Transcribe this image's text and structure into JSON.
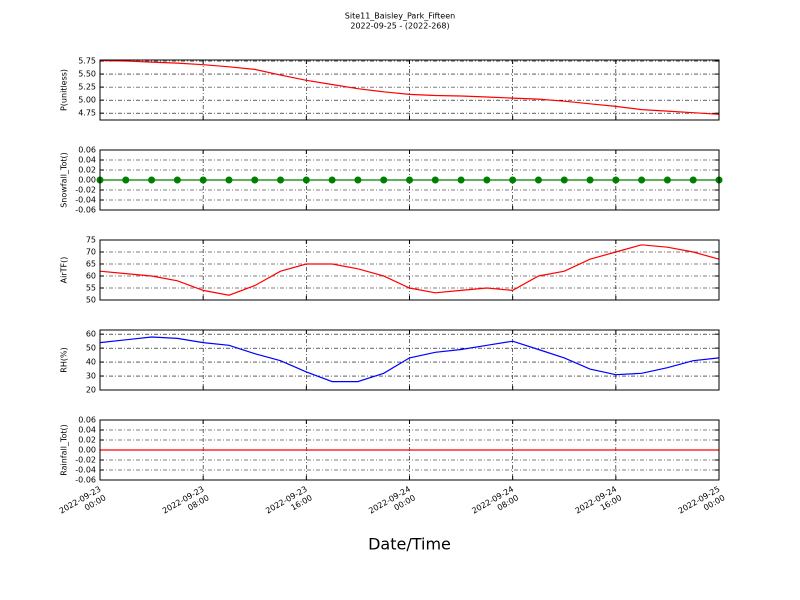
{
  "title": "Site11_Baisley_Park_Fifteen",
  "subtitle": "2022-09-25 - (2022-268)",
  "chart_data": [
    {
      "type": "line",
      "ylabel": "P(unitless)",
      "color": "#ff0000",
      "grid": true,
      "x": [
        "2022-09-23 00:00",
        "2022-09-23 02:00",
        "2022-09-23 04:00",
        "2022-09-23 06:00",
        "2022-09-23 08:00",
        "2022-09-23 10:00",
        "2022-09-23 12:00",
        "2022-09-23 14:00",
        "2022-09-23 16:00",
        "2022-09-23 18:00",
        "2022-09-23 20:00",
        "2022-09-23 22:00",
        "2022-09-24 00:00",
        "2022-09-24 02:00",
        "2022-09-24 04:00",
        "2022-09-24 06:00",
        "2022-09-24 08:00",
        "2022-09-24 10:00",
        "2022-09-24 12:00",
        "2022-09-24 14:00",
        "2022-09-24 16:00",
        "2022-09-24 18:00",
        "2022-09-24 20:00",
        "2022-09-24 22:00",
        "2022-09-25 00:00"
      ],
      "values": [
        5.76,
        5.75,
        5.73,
        5.71,
        5.68,
        5.64,
        5.59,
        5.48,
        5.38,
        5.3,
        5.22,
        5.16,
        5.11,
        5.09,
        5.08,
        5.06,
        5.04,
        5.02,
        4.98,
        4.93,
        4.88,
        4.82,
        4.79,
        4.76,
        4.73
      ],
      "xlim": [
        "2022-09-23 00:00",
        "2022-09-25 00:00"
      ],
      "xticks": [
        "2022-09-23 00:00",
        "2022-09-23 08:00",
        "2022-09-23 16:00",
        "2022-09-24 00:00",
        "2022-09-24 08:00",
        "2022-09-24 16:00",
        "2022-09-25 00:00"
      ],
      "ylim": [
        4.62,
        5.77
      ],
      "yticks": [
        4.75,
        {
          "value": 5,
          "label": "5.00"
        },
        5.25,
        {
          "value": 5.5,
          "label": "5.50"
        },
        5.75
      ]
    },
    {
      "type": "line",
      "ylabel": "Snowfall_Tot()",
      "color": "#008000",
      "marker": true,
      "grid": true,
      "x": [
        "2022-09-23 00:00",
        "2022-09-23 02:00",
        "2022-09-23 04:00",
        "2022-09-23 06:00",
        "2022-09-23 08:00",
        "2022-09-23 10:00",
        "2022-09-23 12:00",
        "2022-09-23 14:00",
        "2022-09-23 16:00",
        "2022-09-23 18:00",
        "2022-09-23 20:00",
        "2022-09-23 22:00",
        "2022-09-24 00:00",
        "2022-09-24 02:00",
        "2022-09-24 04:00",
        "2022-09-24 06:00",
        "2022-09-24 08:00",
        "2022-09-24 10:00",
        "2022-09-24 12:00",
        "2022-09-24 14:00",
        "2022-09-24 16:00",
        "2022-09-24 18:00",
        "2022-09-24 20:00",
        "2022-09-24 22:00",
        "2022-09-25 00:00"
      ],
      "values": [
        0,
        0,
        0,
        0,
        0,
        0,
        0,
        0,
        0,
        0,
        0,
        0,
        0,
        0,
        0,
        0,
        0,
        0,
        0,
        0,
        0,
        0,
        0,
        0,
        0
      ],
      "xlim": [
        "2022-09-23 00:00",
        "2022-09-25 00:00"
      ],
      "xticks": [
        "2022-09-23 00:00",
        "2022-09-23 08:00",
        "2022-09-23 16:00",
        "2022-09-24 00:00",
        "2022-09-24 08:00",
        "2022-09-24 16:00",
        "2022-09-25 00:00"
      ],
      "ylim": [
        -0.06,
        0.06
      ],
      "yticks": [
        -0.06,
        -0.04,
        -0.02,
        {
          "value": 0,
          "label": "0.00"
        },
        0.02,
        0.04,
        0.06
      ]
    },
    {
      "type": "line",
      "ylabel": "AirTF()",
      "color": "#ff0000",
      "grid": true,
      "x": [
        "2022-09-23 00:00",
        "2022-09-23 02:00",
        "2022-09-23 04:00",
        "2022-09-23 06:00",
        "2022-09-23 08:00",
        "2022-09-23 10:00",
        "2022-09-23 12:00",
        "2022-09-23 14:00",
        "2022-09-23 16:00",
        "2022-09-23 18:00",
        "2022-09-23 20:00",
        "2022-09-23 22:00",
        "2022-09-24 00:00",
        "2022-09-24 02:00",
        "2022-09-24 04:00",
        "2022-09-24 06:00",
        "2022-09-24 08:00",
        "2022-09-24 10:00",
        "2022-09-24 12:00",
        "2022-09-24 14:00",
        "2022-09-24 16:00",
        "2022-09-24 18:00",
        "2022-09-24 20:00",
        "2022-09-24 22:00",
        "2022-09-25 00:00"
      ],
      "values": [
        62,
        61,
        60,
        58,
        54,
        52,
        56,
        62,
        65,
        65,
        63,
        60,
        55,
        53,
        54,
        55,
        54,
        60,
        62,
        67,
        70,
        73,
        72,
        70,
        67
      ],
      "xlim": [
        "2022-09-23 00:00",
        "2022-09-25 00:00"
      ],
      "xticks": [
        "2022-09-23 00:00",
        "2022-09-23 08:00",
        "2022-09-23 16:00",
        "2022-09-24 00:00",
        "2022-09-24 08:00",
        "2022-09-24 16:00",
        "2022-09-25 00:00"
      ],
      "ylim": [
        50,
        75
      ],
      "yticks": [
        50,
        55,
        60,
        65,
        70,
        75
      ]
    },
    {
      "type": "line",
      "ylabel": "RH(%)",
      "color": "#0000ff",
      "grid": true,
      "x": [
        "2022-09-23 00:00",
        "2022-09-23 02:00",
        "2022-09-23 04:00",
        "2022-09-23 06:00",
        "2022-09-23 08:00",
        "2022-09-23 10:00",
        "2022-09-23 12:00",
        "2022-09-23 14:00",
        "2022-09-23 16:00",
        "2022-09-23 18:00",
        "2022-09-23 20:00",
        "2022-09-23 22:00",
        "2022-09-24 00:00",
        "2022-09-24 02:00",
        "2022-09-24 04:00",
        "2022-09-24 06:00",
        "2022-09-24 08:00",
        "2022-09-24 10:00",
        "2022-09-24 12:00",
        "2022-09-24 14:00",
        "2022-09-24 16:00",
        "2022-09-24 18:00",
        "2022-09-24 20:00",
        "2022-09-24 22:00",
        "2022-09-25 00:00"
      ],
      "values": [
        54,
        56,
        58,
        57,
        54,
        52,
        46,
        41,
        33,
        26,
        26,
        32,
        43,
        47,
        49,
        52,
        55,
        49,
        43,
        35,
        31,
        32,
        36,
        41,
        43
      ],
      "xlim": [
        "2022-09-23 00:00",
        "2022-09-25 00:00"
      ],
      "xticks": [
        "2022-09-23 00:00",
        "2022-09-23 08:00",
        "2022-09-23 16:00",
        "2022-09-24 00:00",
        "2022-09-24 08:00",
        "2022-09-24 16:00",
        "2022-09-25 00:00"
      ],
      "ylim": [
        20,
        63
      ],
      "yticks": [
        20,
        30,
        40,
        50,
        60
      ]
    },
    {
      "type": "line",
      "ylabel": "Rainfall_Tot()",
      "xlabel": "Date/Time",
      "color": "#ff0000",
      "grid": true,
      "xticklabels": true,
      "x": [
        "2022-09-23 00:00",
        "2022-09-23 02:00",
        "2022-09-23 04:00",
        "2022-09-23 06:00",
        "2022-09-23 08:00",
        "2022-09-23 10:00",
        "2022-09-23 12:00",
        "2022-09-23 14:00",
        "2022-09-23 16:00",
        "2022-09-23 18:00",
        "2022-09-23 20:00",
        "2022-09-23 22:00",
        "2022-09-24 00:00",
        "2022-09-24 02:00",
        "2022-09-24 04:00",
        "2022-09-24 06:00",
        "2022-09-24 08:00",
        "2022-09-24 10:00",
        "2022-09-24 12:00",
        "2022-09-24 14:00",
        "2022-09-24 16:00",
        "2022-09-24 18:00",
        "2022-09-24 20:00",
        "2022-09-24 22:00",
        "2022-09-25 00:00"
      ],
      "values": [
        0,
        0,
        0,
        0,
        0,
        0,
        0,
        0,
        0,
        0,
        0,
        0,
        0,
        0,
        0,
        0,
        0,
        0,
        0,
        0,
        0,
        0,
        0,
        0,
        0
      ],
      "xlim": [
        "2022-09-23 00:00",
        "2022-09-25 00:00"
      ],
      "xticks": [
        "2022-09-23 00:00",
        "2022-09-23 08:00",
        "2022-09-23 16:00",
        "2022-09-24 00:00",
        "2022-09-24 08:00",
        "2022-09-24 16:00",
        "2022-09-25 00:00"
      ],
      "ylim": [
        -0.06,
        0.06
      ],
      "yticks": [
        -0.06,
        -0.04,
        -0.02,
        {
          "value": 0,
          "label": "0.00"
        },
        0.02,
        0.04,
        0.06
      ]
    }
  ]
}
